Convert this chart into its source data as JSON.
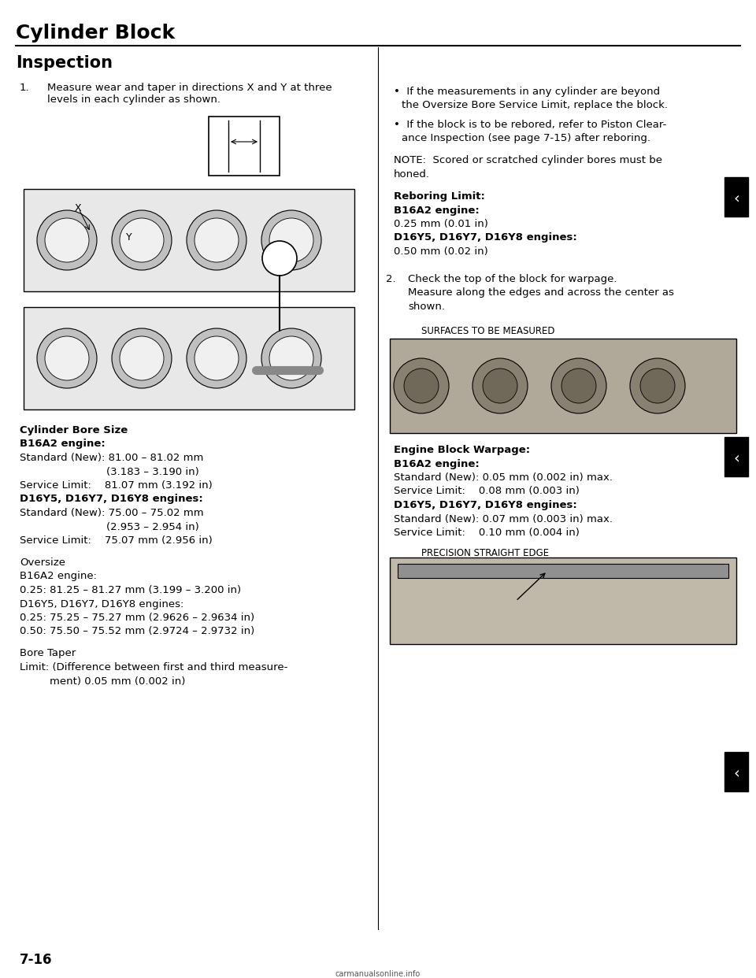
{
  "page_title": "Cylinder Block",
  "section_title": "Inspection",
  "bg_color": "#ffffff",
  "text_color": "#000000",
  "title_fontsize": 18,
  "section_fontsize": 15,
  "body_fontsize": 9.5,
  "bold_fontsize": 9.5,
  "step1_text": "Measure wear and taper in directions X and Y at three\nlevels in each cylinder as shown.",
  "page_number": "7-16"
}
